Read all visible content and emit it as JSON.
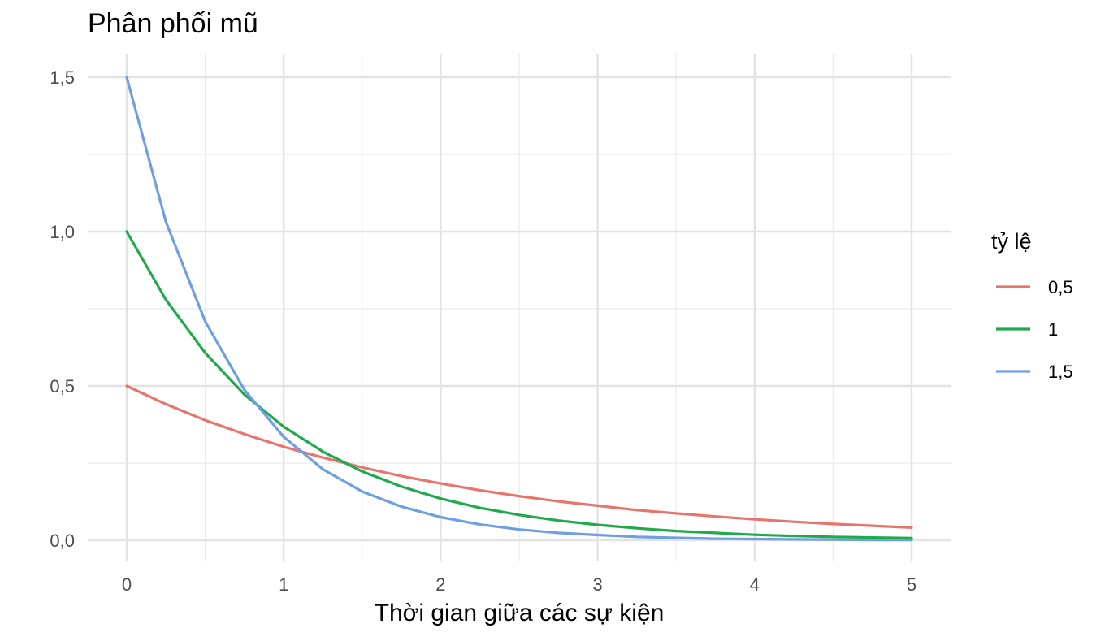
{
  "chart_data": {
    "type": "line",
    "title": "Phân phối mũ",
    "xlabel": "Thời gian giữa các sự kiện",
    "ylabel": "",
    "xlim": [
      0,
      5
    ],
    "ylim": [
      0,
      1.5
    ],
    "x_ticks": [
      0,
      1,
      2,
      3,
      4,
      5
    ],
    "x_tick_labels": [
      "0",
      "1",
      "2",
      "3",
      "4",
      "5"
    ],
    "y_ticks": [
      0,
      0.5,
      1.0,
      1.5
    ],
    "y_tick_labels": [
      "0,0",
      "0,5",
      "1,0",
      "1,5"
    ],
    "grid": true,
    "legend": {
      "title": "tỷ lệ",
      "position": "right"
    },
    "x": [
      0,
      0.25,
      0.5,
      0.75,
      1,
      1.25,
      1.5,
      1.75,
      2,
      2.25,
      2.5,
      2.75,
      3,
      3.25,
      3.5,
      3.75,
      4,
      4.25,
      4.5,
      4.75,
      5
    ],
    "series": [
      {
        "name": "0,5",
        "color": "#E8756D",
        "values": [
          0.5,
          0.441,
          0.389,
          0.344,
          0.303,
          0.268,
          0.236,
          0.208,
          0.184,
          0.162,
          0.143,
          0.126,
          0.112,
          0.098,
          0.087,
          0.077,
          0.068,
          0.06,
          0.053,
          0.047,
          0.041
        ]
      },
      {
        "name": "1",
        "color": "#1FAA4B",
        "values": [
          1.0,
          0.779,
          0.607,
          0.472,
          0.368,
          0.287,
          0.223,
          0.174,
          0.135,
          0.105,
          0.082,
          0.064,
          0.05,
          0.039,
          0.03,
          0.024,
          0.018,
          0.014,
          0.011,
          0.009,
          0.007
        ]
      },
      {
        "name": "1,5",
        "color": "#6F9FE3",
        "values": [
          1.5,
          1.031,
          0.709,
          0.487,
          0.335,
          0.23,
          0.158,
          0.109,
          0.075,
          0.051,
          0.035,
          0.024,
          0.017,
          0.011,
          0.008,
          0.005,
          0.004,
          0.003,
          0.002,
          0.001,
          0.001
        ]
      }
    ]
  }
}
